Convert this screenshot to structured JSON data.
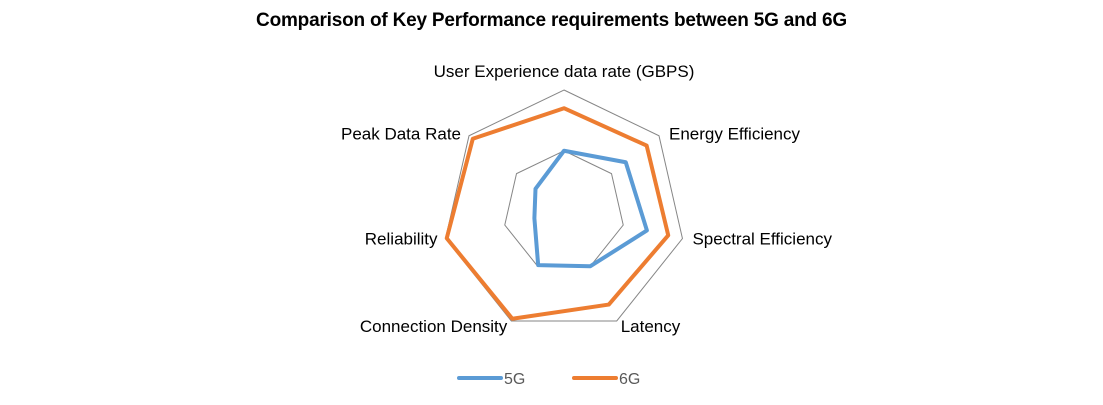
{
  "chart_data": {
    "type": "radar",
    "title": "Comparison of Key Performance requirements between 5G and 6G",
    "categories": [
      "User Experience data rate (GBPS)",
      "Energy Efficiency",
      "Spectral Efficiency",
      "Latency",
      "Connection Density",
      "Reliability",
      "Peak Data Rate"
    ],
    "series": [
      {
        "name": "5G",
        "color": "#5B9BD5",
        "values": [
          5,
          6.5,
          7,
          5,
          4.9,
          2.5,
          3
        ]
      },
      {
        "name": "6G",
        "color": "#ED7D31",
        "values": [
          8.5,
          8.7,
          8.8,
          8.5,
          9.8,
          9.9,
          9.6
        ]
      }
    ],
    "rlim": [
      0,
      10
    ],
    "grid_levels": [
      5,
      10
    ],
    "grid_color": "#868686",
    "tick_labels_shown": false,
    "legend_position": "bottom"
  }
}
